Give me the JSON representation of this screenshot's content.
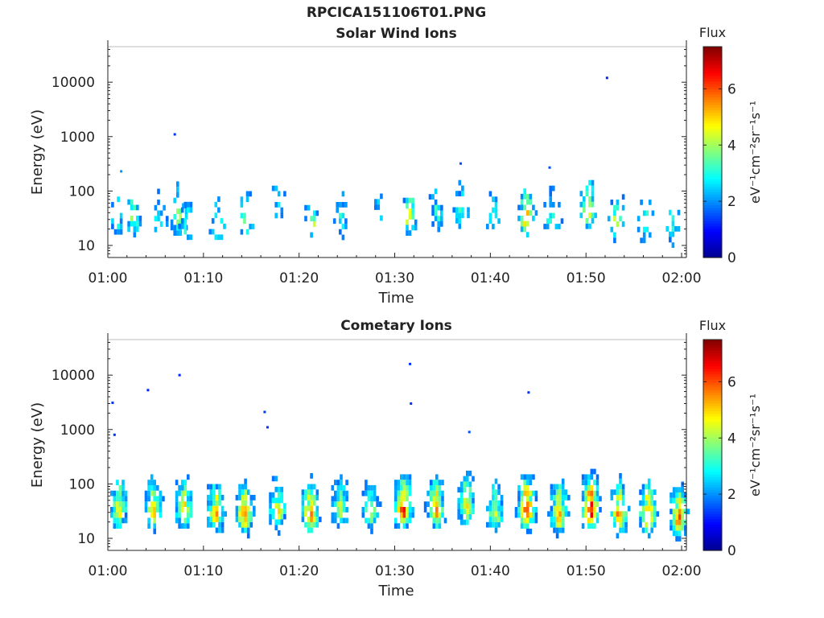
{
  "title": "RPCICA151106T01.PNG",
  "colormap": [
    "#00008f",
    "#0000ff",
    "#0080ff",
    "#00ffff",
    "#80ff80",
    "#ffff00",
    "#ff8000",
    "#ff0000",
    "#800000"
  ],
  "chart_data": [
    {
      "type": "heatmap",
      "title": "Solar Wind Ions",
      "xlabel": "Time",
      "ylabel": "Energy (eV)",
      "x_ticks": [
        "01:00",
        "01:10",
        "01:20",
        "01:30",
        "01:40",
        "01:50",
        "02:00"
      ],
      "x_range_minutes": [
        0,
        60.5
      ],
      "y_scale": "log",
      "y_range": [
        6,
        45000
      ],
      "y_ticks": [
        "10",
        "100",
        "1000",
        "10000"
      ],
      "colorbar": {
        "title": "Flux",
        "unit": "eV⁻¹cm⁻²sr⁻¹s⁻¹",
        "range": [
          0,
          7.5
        ],
        "ticks": [
          "0",
          "2",
          "4",
          "6"
        ]
      },
      "clusters": [
        {
          "t": 1.0,
          "e": 25,
          "f": 3.4
        },
        {
          "t": 2.7,
          "e": 28,
          "f": 4.0
        },
        {
          "t": 5.5,
          "e": 22,
          "f": 3.6
        },
        {
          "t": 7.5,
          "e": 30,
          "f": 4.4
        },
        {
          "t": 8.3,
          "e": 20,
          "f": 3.4
        },
        {
          "t": 11.5,
          "e": 20,
          "f": 3.5
        },
        {
          "t": 14.5,
          "e": 25,
          "f": 4.3
        },
        {
          "t": 17.8,
          "e": 50,
          "f": 3.0
        },
        {
          "t": 21.5,
          "e": 22,
          "f": 4.2
        },
        {
          "t": 24.5,
          "e": 25,
          "f": 3.4
        },
        {
          "t": 28.5,
          "e": 45,
          "f": 2.8
        },
        {
          "t": 31.5,
          "e": 30,
          "f": 4.7
        },
        {
          "t": 34.5,
          "e": 35,
          "f": 3.4
        },
        {
          "t": 37.0,
          "e": 40,
          "f": 3.4
        },
        {
          "t": 40.5,
          "e": 25,
          "f": 3.4
        },
        {
          "t": 43.8,
          "e": 28,
          "f": 5.4
        },
        {
          "t": 46.5,
          "e": 25,
          "f": 3.6
        },
        {
          "t": 50.3,
          "e": 40,
          "f": 5.0
        },
        {
          "t": 53.2,
          "e": 22,
          "f": 4.6
        },
        {
          "t": 56.3,
          "e": 22,
          "f": 3.8
        },
        {
          "t": 59.0,
          "e": 18,
          "f": 3.6
        }
      ],
      "isolated_points": [
        {
          "t": 7.0,
          "e": 1100,
          "f": 1.3
        },
        {
          "t": 52.2,
          "e": 12000,
          "f": 1.2
        },
        {
          "t": 1.4,
          "e": 230,
          "f": 2.0
        },
        {
          "t": 36.9,
          "e": 320,
          "f": 1.5
        },
        {
          "t": 46.2,
          "e": 270,
          "f": 1.5
        }
      ]
    },
    {
      "type": "heatmap",
      "title": "Cometary Ions",
      "xlabel": "Time",
      "ylabel": "Energy (eV)",
      "x_ticks": [
        "01:00",
        "01:10",
        "01:20",
        "01:30",
        "01:40",
        "01:50",
        "02:00"
      ],
      "x_range_minutes": [
        0,
        60.5
      ],
      "y_scale": "log",
      "y_range": [
        6,
        45000
      ],
      "y_ticks": [
        "10",
        "100",
        "1000",
        "10000"
      ],
      "colorbar": {
        "title": "Flux",
        "unit": "eV⁻¹cm⁻²sr⁻¹s⁻¹",
        "range": [
          0,
          7.5
        ],
        "ticks": [
          "0",
          "2",
          "4",
          "6"
        ]
      },
      "clusters": [
        {
          "t": 1.2,
          "e": 30,
          "f": 5.0
        },
        {
          "t": 4.8,
          "e": 30,
          "f": 5.3
        },
        {
          "t": 8.0,
          "e": 30,
          "f": 5.3
        },
        {
          "t": 11.3,
          "e": 25,
          "f": 5.6
        },
        {
          "t": 14.3,
          "e": 25,
          "f": 6.0
        },
        {
          "t": 17.8,
          "e": 28,
          "f": 5.2
        },
        {
          "t": 21.2,
          "e": 25,
          "f": 6.0
        },
        {
          "t": 24.3,
          "e": 30,
          "f": 4.8
        },
        {
          "t": 27.5,
          "e": 30,
          "f": 4.7
        },
        {
          "t": 30.9,
          "e": 30,
          "f": 6.8
        },
        {
          "t": 34.3,
          "e": 30,
          "f": 6.0
        },
        {
          "t": 37.5,
          "e": 35,
          "f": 5.2
        },
        {
          "t": 40.5,
          "e": 25,
          "f": 4.8
        },
        {
          "t": 43.8,
          "e": 30,
          "f": 7.0
        },
        {
          "t": 47.2,
          "e": 25,
          "f": 6.0
        },
        {
          "t": 50.5,
          "e": 30,
          "f": 7.2
        },
        {
          "t": 53.5,
          "e": 25,
          "f": 6.2
        },
        {
          "t": 56.5,
          "e": 25,
          "f": 6.2
        },
        {
          "t": 59.7,
          "e": 22,
          "f": 6.2
        }
      ],
      "isolated_points": [
        {
          "t": 4.2,
          "e": 5300,
          "f": 1.2
        },
        {
          "t": 7.5,
          "e": 10000,
          "f": 1.2
        },
        {
          "t": 31.6,
          "e": 16000,
          "f": 1.3
        },
        {
          "t": 31.7,
          "e": 3000,
          "f": 1.3
        },
        {
          "t": 44.0,
          "e": 4800,
          "f": 1.3
        },
        {
          "t": 0.5,
          "e": 3100,
          "f": 1.3
        },
        {
          "t": 16.4,
          "e": 2100,
          "f": 1.3
        },
        {
          "t": 16.7,
          "e": 1100,
          "f": 1.3
        },
        {
          "t": 37.8,
          "e": 900,
          "f": 1.5
        },
        {
          "t": 0.7,
          "e": 800,
          "f": 1.3
        }
      ]
    }
  ]
}
